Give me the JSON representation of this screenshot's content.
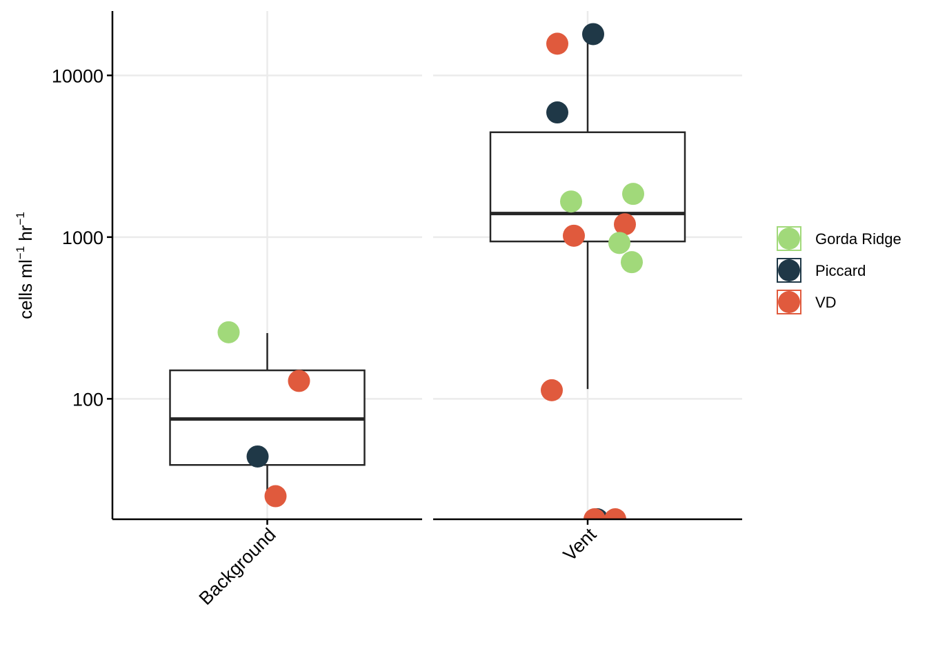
{
  "chart_data": {
    "type": "box",
    "y_scale": "log10",
    "ylim": [
      18,
      25000
    ],
    "ylabel_parts": {
      "cells": "cells ml",
      "ml_sup": "−1",
      "hr": " hr",
      "hr_sup": "−1"
    },
    "y_ticks": [
      {
        "value": 100,
        "label": "100"
      },
      {
        "value": 1000,
        "label": "1000"
      },
      {
        "value": 10000,
        "label": "10000"
      }
    ],
    "legend": {
      "placement": "right",
      "entries": [
        {
          "name": "Gorda Ridge",
          "color": "#a1d97a"
        },
        {
          "name": "Piccard",
          "color": "#1f3847"
        },
        {
          "name": "VD",
          "color": "#e05a3d"
        }
      ]
    },
    "panels": [
      {
        "category": "Background",
        "box": {
          "lower_whisker": 25,
          "q1": 39,
          "median": 75,
          "q3": 150,
          "upper_whisker": 255
        },
        "points": [
          {
            "site": "Gorda Ridge",
            "value": 258,
            "jitter": -0.28
          },
          {
            "site": "VD",
            "value": 129,
            "jitter": 0.23
          },
          {
            "site": "Piccard",
            "value": 44,
            "jitter": -0.07
          },
          {
            "site": "VD",
            "value": 25,
            "jitter": 0.06
          }
        ]
      },
      {
        "category": "Vent",
        "box": {
          "lower_whisker": 115,
          "q1": 940,
          "median": 1400,
          "q3": 4450,
          "upper_whisker": 18000
        },
        "points": [
          {
            "site": "Piccard",
            "value": 18000,
            "jitter": 0.04
          },
          {
            "site": "VD",
            "value": 15700,
            "jitter": -0.22
          },
          {
            "site": "Piccard",
            "value": 5900,
            "jitter": -0.22
          },
          {
            "site": "Gorda Ridge",
            "value": 1850,
            "jitter": 0.33
          },
          {
            "site": "Gorda Ridge",
            "value": 1660,
            "jitter": -0.12
          },
          {
            "site": "VD",
            "value": 1200,
            "jitter": 0.27
          },
          {
            "site": "VD",
            "value": 1020,
            "jitter": -0.1
          },
          {
            "site": "Gorda Ridge",
            "value": 920,
            "jitter": 0.23
          },
          {
            "site": "Gorda Ridge",
            "value": 700,
            "jitter": 0.32
          },
          {
            "site": "VD",
            "value": 113,
            "jitter": -0.26
          },
          {
            "site": "Piccard",
            "value": 18,
            "jitter": 0.07
          },
          {
            "site": "VD",
            "value": 18,
            "jitter": 0.05
          },
          {
            "site": "VD",
            "value": 18,
            "jitter": 0.2
          }
        ]
      }
    ]
  }
}
